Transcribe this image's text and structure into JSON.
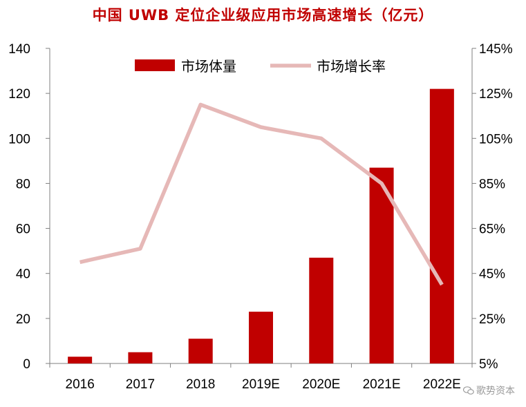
{
  "chart_data": {
    "type": "bar",
    "title": "中国 UWB 定位企业级应用市场高速增长（亿元）",
    "categories": [
      "2016",
      "2017",
      "2018",
      "2019E",
      "2020E",
      "2021E",
      "2022E"
    ],
    "series": [
      {
        "name": "市场体量",
        "type": "bar",
        "axis": "left",
        "color": "#C00000",
        "values": [
          3,
          5,
          11,
          23,
          47,
          87,
          122
        ]
      },
      {
        "name": "市场增长率",
        "type": "line",
        "axis": "right",
        "color": "#E6B8B7",
        "values": [
          50,
          56,
          120,
          110,
          105,
          85,
          40
        ]
      }
    ],
    "y_left": {
      "min": 0,
      "max": 140,
      "ticks": [
        "0",
        "20",
        "40",
        "60",
        "80",
        "100",
        "120",
        "140"
      ]
    },
    "y_right": {
      "min": 5,
      "max": 145,
      "ticks": [
        "5%",
        "25%",
        "45%",
        "65%",
        "85%",
        "105%",
        "125%",
        "145%"
      ]
    },
    "legend": "top-center",
    "grid": false
  },
  "watermark": "歌势资本"
}
